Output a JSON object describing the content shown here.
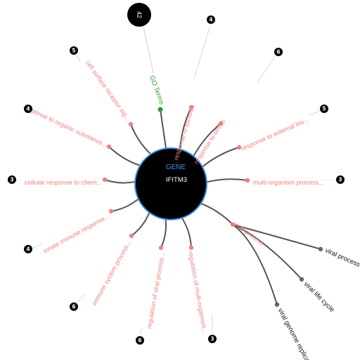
{
  "center": {
    "kind": "GENE",
    "name": "IFITM3"
  },
  "hub": {
    "label": "GO Terms",
    "count": "42"
  },
  "terms": [
    {
      "label": "response to stimulus",
      "count": "4"
    },
    {
      "label": "response to stress",
      "count": "6"
    },
    {
      "label": "response to external bio...",
      "count": "5"
    },
    {
      "label": "multi-organism process...",
      "count": "3"
    },
    {
      "label": "viral process",
      "count": ""
    },
    {
      "label": "regulation of multi-organism...",
      "count": "3"
    },
    {
      "label": "regulation of viral process...",
      "count": "6"
    },
    {
      "label": "immune system process...",
      "count": "6"
    },
    {
      "label": "innate immune response...",
      "count": "4"
    },
    {
      "label": "cellular response to chem...",
      "count": "3"
    },
    {
      "label": "response to organic substance...",
      "count": "4"
    },
    {
      "label": "cell surface receptor sig...",
      "count": "5"
    }
  ],
  "leaves": [
    {
      "label": "viral process"
    },
    {
      "label": "viral life cycle"
    },
    {
      "label": "viral genome replication"
    }
  ],
  "colors": {
    "center_fill": "#000000",
    "center_ring": "#3f8fe6",
    "term_color": "#f08080",
    "go_color": "#2e9b2e",
    "leaf_node": "#666666",
    "link": "#555555"
  }
}
